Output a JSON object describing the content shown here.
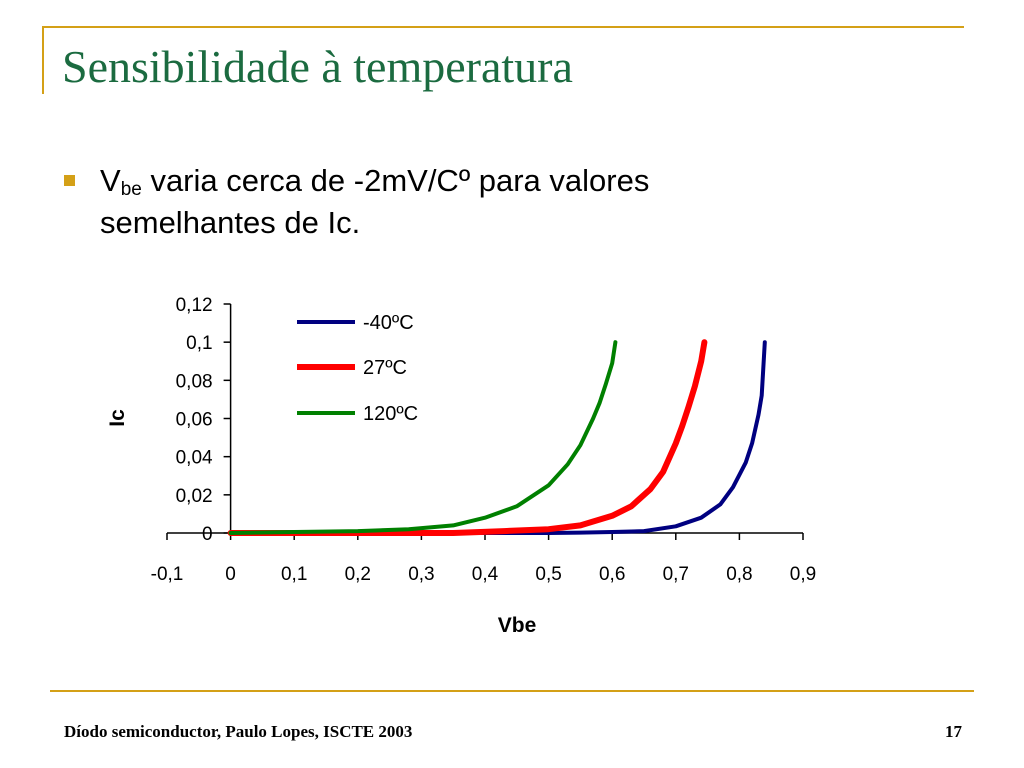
{
  "slide": {
    "title": "Sensibilidade à temperatura",
    "bullet": {
      "v_main": "V",
      "v_sub": "be",
      "text": " varia cerca de -2mV/Cº para valores semelhantes de Ic."
    },
    "footer": "Díodo semiconductor, Paulo Lopes, ISCTE 2003",
    "page_number": "17",
    "colors": {
      "title": "#1b6b40",
      "accent": "#d4a017"
    }
  },
  "chart_data": {
    "type": "line",
    "xlabel": "Vbe",
    "ylabel": "Ic",
    "xlim": [
      -0.1,
      0.9
    ],
    "ylim": [
      0,
      0.12
    ],
    "x_ticks": [
      "-0,1",
      "0",
      "0,1",
      "0,2",
      "0,3",
      "0,4",
      "0,5",
      "0,6",
      "0,7",
      "0,8",
      "0,9"
    ],
    "y_ticks": [
      "0",
      "0,02",
      "0,04",
      "0,06",
      "0,08",
      "0,1",
      "0,12"
    ],
    "legend_position": "top-center",
    "series": [
      {
        "name": "-40ºC",
        "color": "#000080",
        "x": [
          0,
          0.2,
          0.4,
          0.5,
          0.55,
          0.6,
          0.65,
          0.7,
          0.74,
          0.77,
          0.79,
          0.81,
          0.82,
          0.83,
          0.835,
          0.84
        ],
        "y": [
          0,
          0,
          0,
          0,
          0.0002,
          0.0005,
          0.001,
          0.0035,
          0.008,
          0.015,
          0.024,
          0.037,
          0.047,
          0.062,
          0.072,
          0.1
        ]
      },
      {
        "name": "27ºC",
        "color": "#ff0000",
        "x": [
          0,
          0.2,
          0.35,
          0.43,
          0.5,
          0.55,
          0.6,
          0.63,
          0.66,
          0.68,
          0.7,
          0.71,
          0.72,
          0.73,
          0.74,
          0.745
        ],
        "y": [
          0,
          0,
          0,
          0.001,
          0.002,
          0.004,
          0.009,
          0.014,
          0.023,
          0.032,
          0.047,
          0.056,
          0.066,
          0.077,
          0.09,
          0.1
        ]
      },
      {
        "name": "120ºC",
        "color": "#008000",
        "x": [
          0,
          0.1,
          0.2,
          0.28,
          0.35,
          0.4,
          0.45,
          0.5,
          0.53,
          0.55,
          0.57,
          0.58,
          0.59,
          0.6,
          0.605
        ],
        "y": [
          0,
          0.0005,
          0.001,
          0.002,
          0.004,
          0.008,
          0.014,
          0.025,
          0.036,
          0.046,
          0.06,
          0.068,
          0.078,
          0.089,
          0.1
        ]
      }
    ]
  }
}
